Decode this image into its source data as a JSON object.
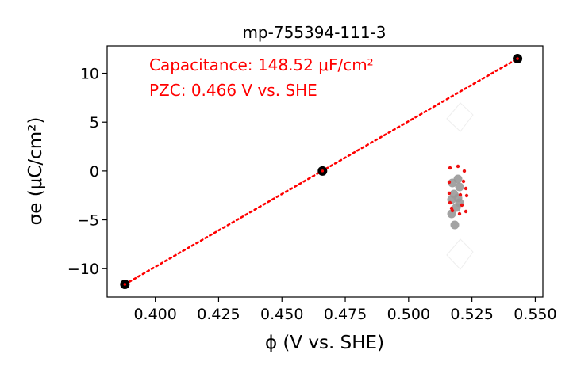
{
  "chart_data": {
    "type": "scatter",
    "title": "mp-755394-111-3",
    "xlabel": "ϕ (V vs. SHE)",
    "ylabel": "σe (μC/cm²)",
    "xlim": [
      0.381,
      0.553
    ],
    "ylim": [
      -12.9,
      12.8
    ],
    "xticks": [
      0.4,
      0.425,
      0.45,
      0.475,
      0.5,
      0.525,
      0.55
    ],
    "xtick_labels": [
      "0.400",
      "0.425",
      "0.450",
      "0.475",
      "0.500",
      "0.525",
      "0.550"
    ],
    "yticks": [
      -10,
      -5,
      0,
      5,
      10
    ],
    "ytick_labels": [
      "−10",
      "−5",
      "0",
      "5",
      "10"
    ],
    "grid": false,
    "series": [
      {
        "kind": "points",
        "color": "#000000",
        "x": [
          0.388,
          0.466,
          0.543
        ],
        "y": [
          -11.6,
          0.0,
          11.5
        ]
      },
      {
        "kind": "fit-line",
        "color": "#ff0000",
        "style": "dotted",
        "x": [
          0.388,
          0.543
        ],
        "y": [
          -11.6,
          11.5
        ]
      }
    ],
    "annotations": [
      "Capacitance: 148.52 μF/cm²",
      "PZC: 0.466 V vs. SHE"
    ],
    "colors": {
      "points": "#000000",
      "fit": "#ff0000",
      "annotation": "#ff0000",
      "inset_gray": "#999999"
    }
  }
}
